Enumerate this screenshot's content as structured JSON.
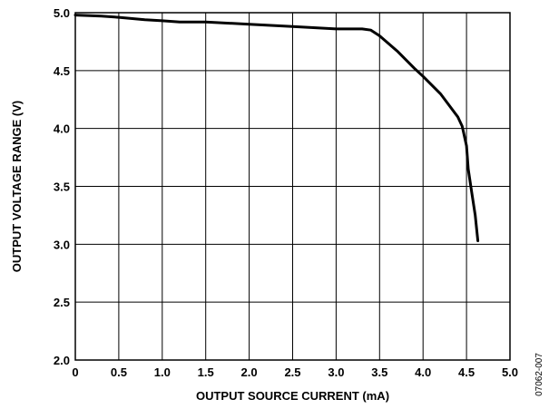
{
  "chart_data": {
    "type": "line",
    "xlabel": "OUTPUT SOURCE CURRENT (mA)",
    "ylabel": "OUTPUT VOLTAGE RANGE (V)",
    "xlim": [
      0,
      5.0
    ],
    "ylim": [
      2.0,
      5.0
    ],
    "x_ticks": [
      "0",
      "0.5",
      "1.0",
      "1.5",
      "2.0",
      "2.5",
      "3.0",
      "3.5",
      "4.0",
      "4.5",
      "5.0"
    ],
    "y_ticks": [
      "2.0",
      "2.5",
      "3.0",
      "3.5",
      "4.0",
      "4.5",
      "5.0"
    ],
    "grid": true,
    "series": [
      {
        "x": [
          0.0,
          0.3,
          0.5,
          0.8,
          1.0,
          1.2,
          1.5,
          2.0,
          2.5,
          3.0,
          3.3,
          3.4,
          3.5,
          3.7,
          3.9,
          4.0,
          4.2,
          4.4,
          4.45,
          4.5,
          4.52,
          4.56,
          4.6,
          4.63
        ],
        "y": [
          4.98,
          4.97,
          4.96,
          4.94,
          4.93,
          4.92,
          4.92,
          4.9,
          4.88,
          4.86,
          4.86,
          4.85,
          4.8,
          4.67,
          4.52,
          4.45,
          4.3,
          4.1,
          4.02,
          3.85,
          3.65,
          3.45,
          3.25,
          3.03
        ]
      }
    ]
  },
  "figure_id": "07062-007"
}
